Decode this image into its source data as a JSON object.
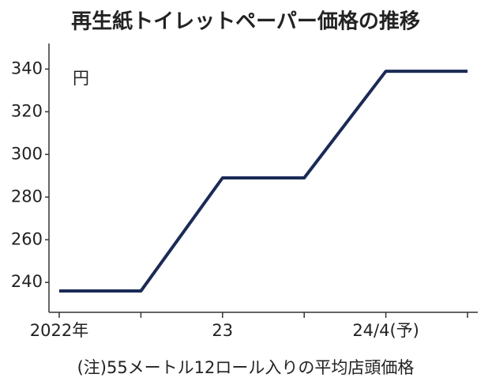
{
  "chart_data": {
    "type": "line",
    "title": "再生紙トイレットペーパー価格の推移",
    "unit_label": "円",
    "note": "(注)55メートル12ロール入りの平均店頭価格",
    "categories": [
      "2022年",
      null,
      "23",
      null,
      "24/4(予)",
      null
    ],
    "values": [
      236,
      236,
      289,
      289,
      339,
      339
    ],
    "color": "#1b2a56",
    "ylim": [
      226,
      352
    ],
    "yticks": [
      240,
      260,
      280,
      300,
      320,
      340
    ],
    "grid": false
  }
}
